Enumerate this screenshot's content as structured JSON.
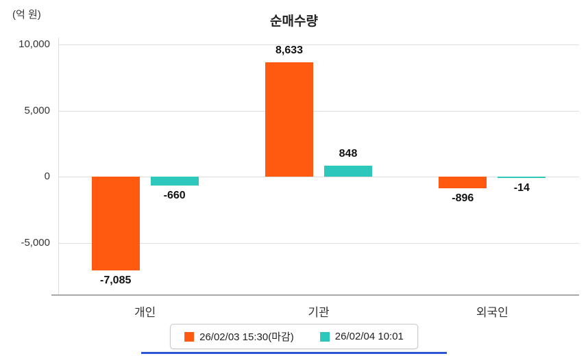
{
  "chart_data": {
    "type": "bar",
    "title": "순매수량",
    "unit_label": "(억 원)",
    "categories": [
      "개인",
      "기관",
      "외국인"
    ],
    "series": [
      {
        "name": "26/02/03 15:30(마감)",
        "color": "#FF5A0F",
        "values": [
          -7085,
          8633,
          -896
        ]
      },
      {
        "name": "26/02/04 10:01",
        "color": "#2EC7BC",
        "values": [
          -660,
          848,
          -14
        ]
      }
    ],
    "value_labels": [
      [
        "-7,085",
        "8,633",
        "-896"
      ],
      [
        "-660",
        "848",
        "-14"
      ]
    ],
    "ylim": [
      -8900,
      10000
    ],
    "yticks": [
      10000,
      5000,
      0,
      -5000
    ],
    "ytick_labels": [
      "10,000",
      "5,000",
      "0",
      "-5,000"
    ],
    "grid": true,
    "legend_position": "bottom",
    "colors": {
      "grid": "#dddddd",
      "axis": "#a8a8a8",
      "accent_line": "#2d54d8"
    }
  }
}
